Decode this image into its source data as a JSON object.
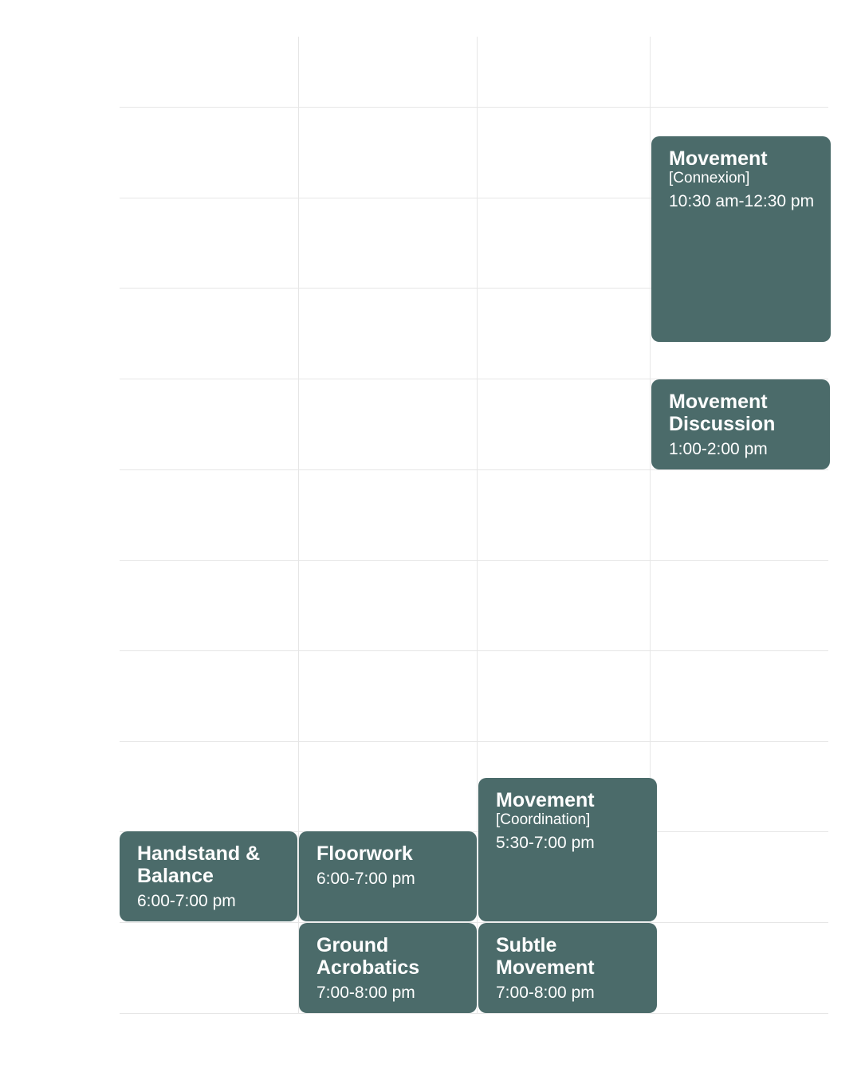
{
  "colors": {
    "event_bg": "#4b6b6a",
    "grid_line": "#e6e6e6",
    "background": "#ffffff"
  },
  "events": {
    "connexion": {
      "title": "Movement",
      "subtitle": "[Connexion]",
      "time": "10:30 am-12:30 pm"
    },
    "discussion": {
      "title_line1": "Movement",
      "title_line2": "Discussion",
      "time": "1:00-2:00 pm"
    },
    "coordination": {
      "title": "Movement",
      "subtitle": "[Coordination]",
      "time": "5:30-7:00 pm"
    },
    "handstand": {
      "title_line1": "Handstand &",
      "title_line2": "Balance",
      "time": "6:00-7:00 pm"
    },
    "floorwork": {
      "title": "Floorwork",
      "time": "6:00-7:00 pm"
    },
    "ground": {
      "title_line1": "Ground",
      "title_line2": "Acrobatics",
      "time": "7:00-8:00 pm"
    },
    "subtle": {
      "title_line1": "Subtle",
      "title_line2": "Movement",
      "time": "7:00-8:00 pm"
    }
  }
}
